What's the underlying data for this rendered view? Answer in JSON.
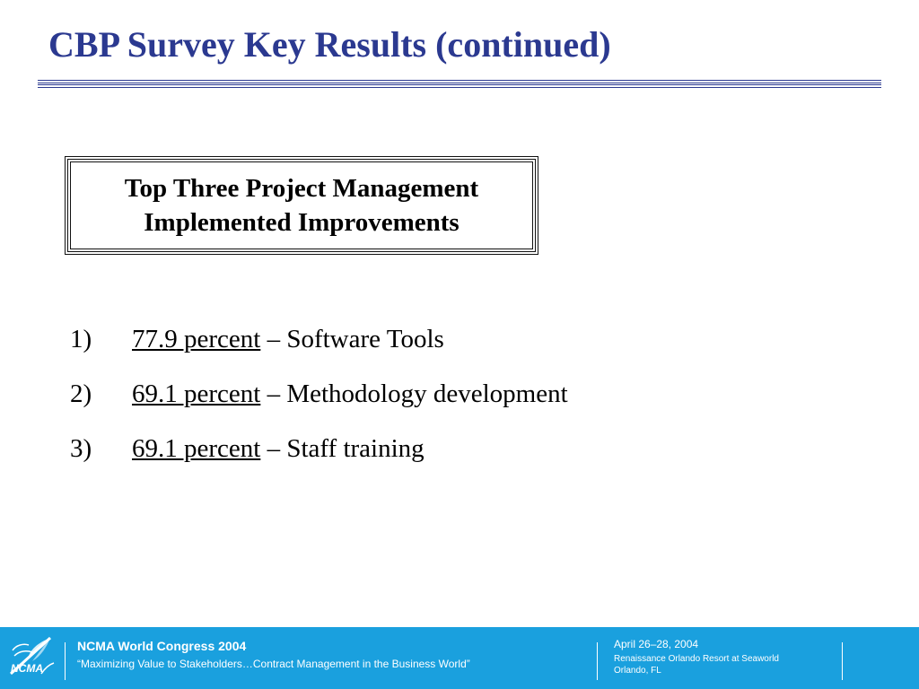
{
  "slide": {
    "title": "CBP Survey Key Results (continued)",
    "box_title_lines": [
      "Top Three Project Management",
      "Implemented Improvements"
    ],
    "items": [
      {
        "number": "1)",
        "percent": "77.9 percent",
        "text": " – Software Tools"
      },
      {
        "number": "2)",
        "percent": "69.1 percent",
        "text": " – Methodology development"
      },
      {
        "number": "3)",
        "percent": "69.1 percent",
        "text": " – Staff training"
      }
    ]
  },
  "footer": {
    "event": "NCMA World Congress 2004",
    "tagline": "“Maximizing Value to Stakeholders…Contract Management in the Business World”",
    "date": "April 26–28, 2004",
    "venue": "Renaissance Orlando Resort at Seaworld",
    "city": "Orlando, FL",
    "logo_text": "NCMA"
  },
  "colors": {
    "title": "#2b3990",
    "footer_bg": "#1aa0de",
    "footer_text": "#ffffff"
  },
  "icons": {
    "logo": "ncma-quill-logo-icon"
  }
}
